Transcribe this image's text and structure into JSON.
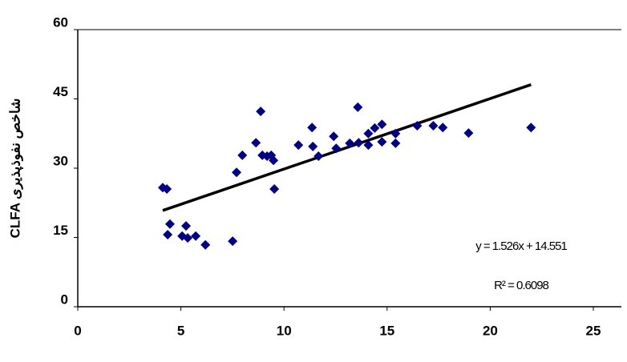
{
  "chart_data": {
    "type": "scatter",
    "y_label": "CLFA شاخص نفوذپذیری",
    "x": [
      4.12,
      4.32,
      4.36,
      4.47,
      5.06,
      5.25,
      5.33,
      5.72,
      6.19,
      7.51,
      7.7,
      7.98,
      8.64,
      8.87,
      8.95,
      9.18,
      9.38,
      9.49,
      9.53,
      10.7,
      11.36,
      11.4,
      11.67,
      12.41,
      12.53,
      13.19,
      13.58,
      13.62,
      14.09,
      14.09,
      14.4,
      14.75,
      14.75,
      15.41,
      15.41,
      16.46,
      17.24,
      17.7,
      18.95,
      21.98
    ],
    "values": [
      25.8,
      25.5,
      15.6,
      17.9,
      15.3,
      17.5,
      14.9,
      15.3,
      13.4,
      14.2,
      29.1,
      32.8,
      35.5,
      42.3,
      32.8,
      32.6,
      32.8,
      31.7,
      25.5,
      35.0,
      38.8,
      34.7,
      32.6,
      36.9,
      34.3,
      35.4,
      43.2,
      35.5,
      37.5,
      35.0,
      38.7,
      39.5,
      35.7,
      37.5,
      35.4,
      39.2,
      39.2,
      38.8,
      37.6,
      38.8
    ],
    "color": "#000080",
    "trendline": {
      "slope": 1.526,
      "intercept": 14.551,
      "color": "#000000"
    },
    "equation_label": "y = 1.526x + 14.551",
    "r2_label": "R² = 0.6098",
    "xlim": [
      0,
      25
    ],
    "ylim": [
      0,
      60
    ],
    "xticks": [
      0,
      5,
      10,
      15,
      20,
      25
    ],
    "yticks": [
      0,
      15,
      30,
      45,
      60
    ]
  }
}
